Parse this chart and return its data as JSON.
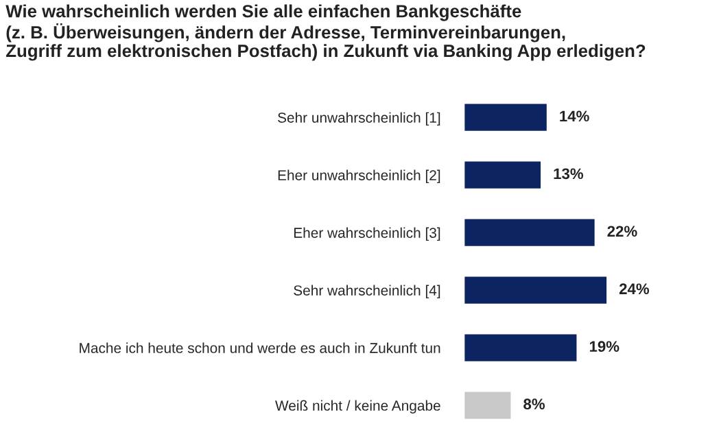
{
  "chart_data": {
    "type": "bar",
    "orientation": "horizontal",
    "title": "Wie wahrscheinlich werden Sie alle einfachen Bankgeschäfte\n(z. B. Überweisungen, ändern der Adresse, Terminvereinbarungen,\nZugriff zum elektronischen Postfach) in Zukunft via Banking App erledigen?",
    "categories": [
      "Sehr unwahrscheinlich [1]",
      "Eher unwahrscheinlich [2]",
      "Eher wahrscheinlich [3]",
      "Sehr wahrscheinlich [4]",
      "Mache ich heute schon und werde es auch in Zukunft tun",
      "Weiß nicht / keine Angabe"
    ],
    "values": [
      14,
      13,
      22,
      24,
      19,
      8
    ],
    "value_labels": [
      "14%",
      "13%",
      "22%",
      "24%",
      "19%",
      "8%"
    ],
    "colors": [
      "#0c2461",
      "#0c2461",
      "#0c2461",
      "#0c2461",
      "#0c2461",
      "#c8c8c8"
    ]
  }
}
